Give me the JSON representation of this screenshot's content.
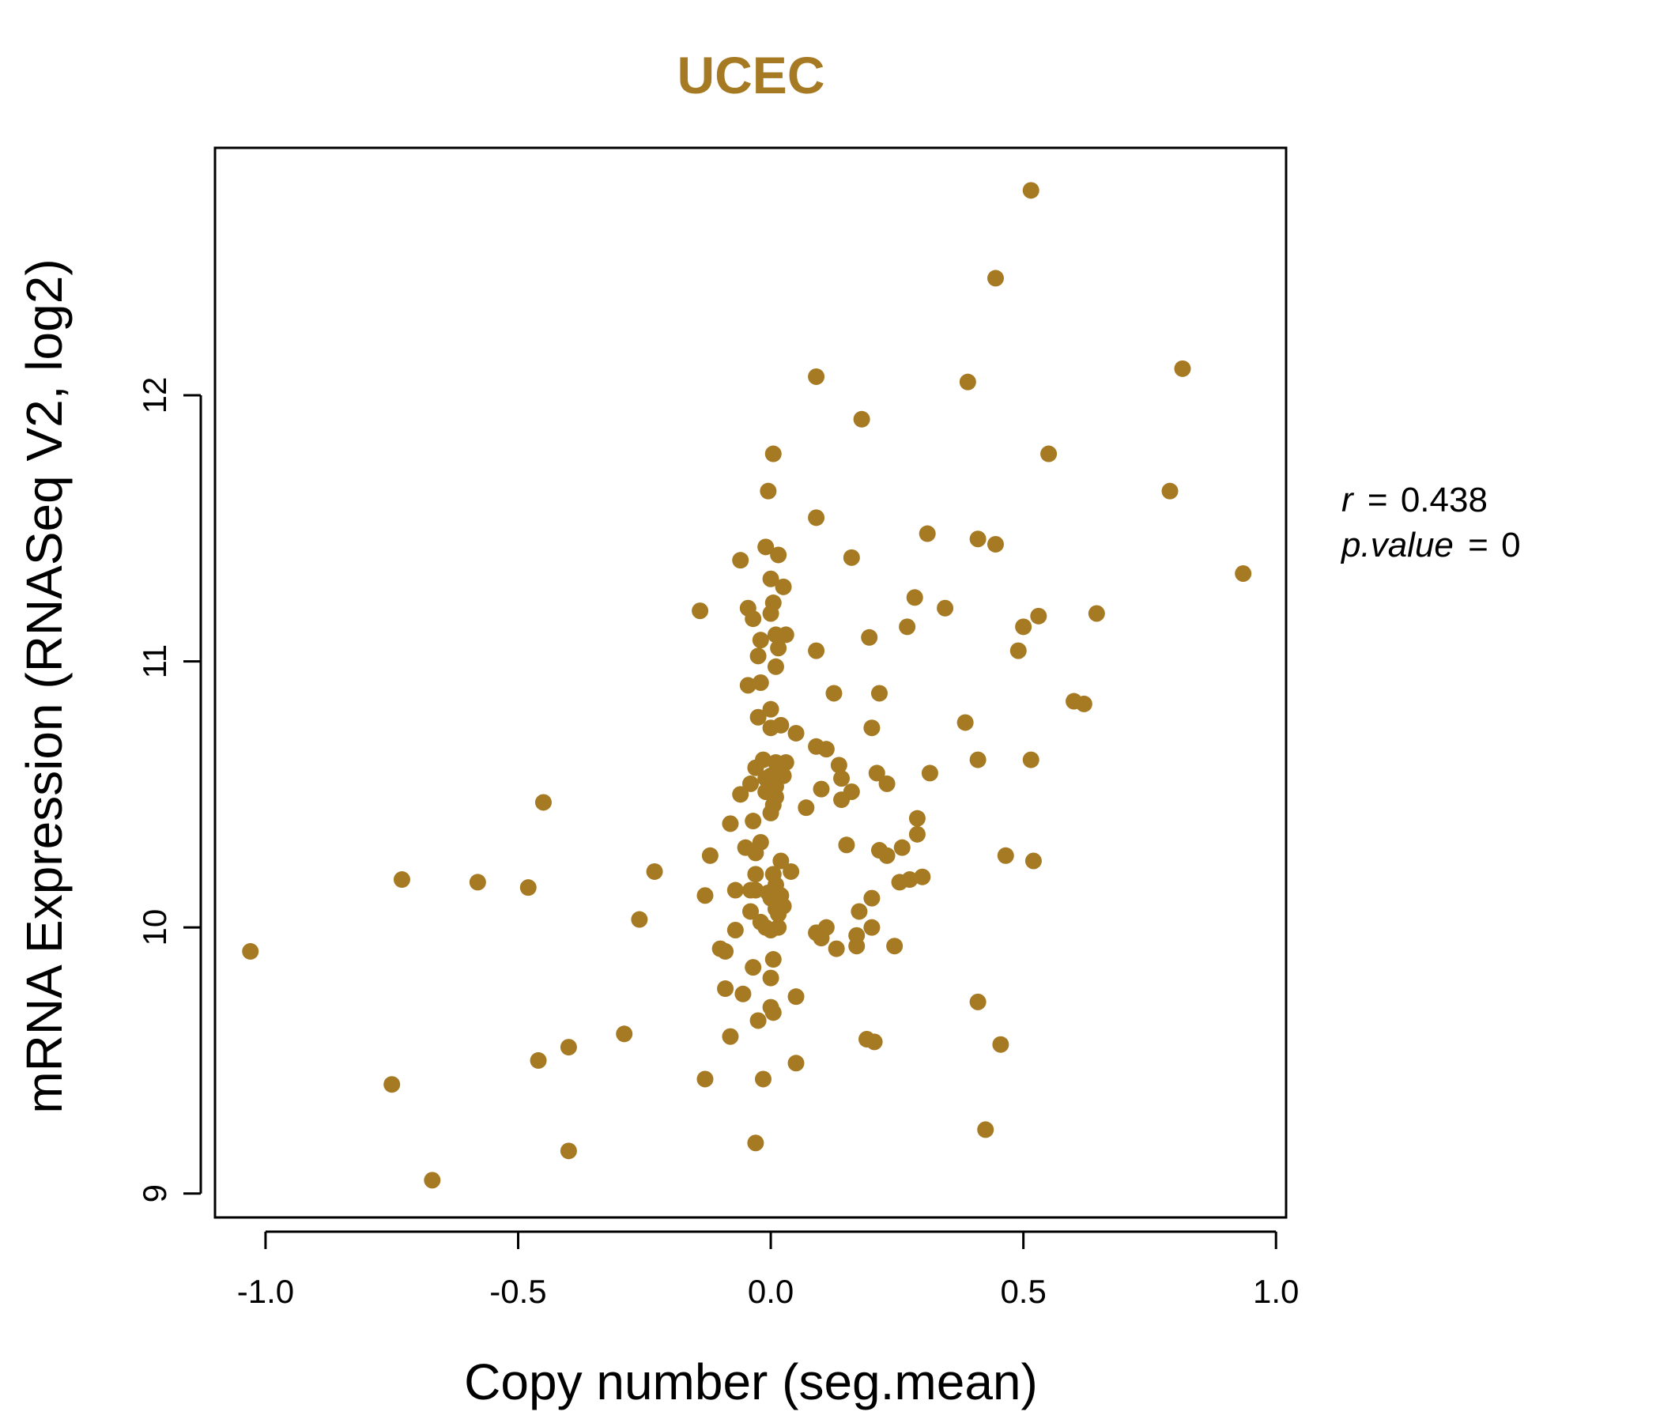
{
  "chart_data": {
    "type": "scatter",
    "title": "UCEC",
    "xlabel": "Copy number (seg.mean)",
    "ylabel": "mRNA Expression (RNASeq V2, log2)",
    "xlim": [
      -1.1,
      1.02
    ],
    "ylim": [
      8.91,
      12.93
    ],
    "xticks": [
      -1.0,
      -0.5,
      0.0,
      0.5,
      1.0
    ],
    "xtick_labels": [
      "-1.0",
      "-0.5",
      "0.0",
      "0.5",
      "1.0"
    ],
    "yticks": [
      9,
      10,
      11,
      12
    ],
    "ytick_labels": [
      "9",
      "10",
      "11",
      "12"
    ],
    "grid": false,
    "legend": "none",
    "point_color": "#A67A22",
    "annotations": {
      "r_label": "r",
      "r_value": "0.438",
      "p_label": "p.value",
      "p_value": "0",
      "equals": "="
    },
    "points": [
      [
        -1.03,
        9.91
      ],
      [
        -0.75,
        9.41
      ],
      [
        -0.73,
        10.18
      ],
      [
        -0.67,
        9.05
      ],
      [
        -0.58,
        10.17
      ],
      [
        -0.48,
        10.15
      ],
      [
        -0.46,
        9.5
      ],
      [
        -0.45,
        10.47
      ],
      [
        -0.4,
        9.55
      ],
      [
        -0.4,
        9.16
      ],
      [
        -0.29,
        9.6
      ],
      [
        -0.26,
        10.03
      ],
      [
        -0.23,
        10.21
      ],
      [
        -0.14,
        11.19
      ],
      [
        -0.13,
        10.12
      ],
      [
        -0.13,
        9.43
      ],
      [
        -0.12,
        10.27
      ],
      [
        -0.1,
        9.92
      ],
      [
        -0.09,
        9.77
      ],
      [
        -0.09,
        9.91
      ],
      [
        -0.08,
        9.59
      ],
      [
        -0.08,
        10.39
      ],
      [
        -0.07,
        10.14
      ],
      [
        -0.07,
        9.99
      ],
      [
        -0.06,
        11.38
      ],
      [
        -0.06,
        10.5
      ],
      [
        -0.055,
        9.75
      ],
      [
        -0.05,
        10.3
      ],
      [
        -0.045,
        11.2
      ],
      [
        -0.045,
        10.91
      ],
      [
        -0.04,
        10.54
      ],
      [
        -0.04,
        10.14
      ],
      [
        -0.04,
        10.06
      ],
      [
        -0.035,
        11.16
      ],
      [
        -0.035,
        10.4
      ],
      [
        -0.035,
        9.85
      ],
      [
        -0.03,
        10.6
      ],
      [
        -0.03,
        10.28
      ],
      [
        -0.03,
        10.2
      ],
      [
        -0.03,
        10.14
      ],
      [
        -0.03,
        9.19
      ],
      [
        -0.025,
        11.02
      ],
      [
        -0.025,
        10.79
      ],
      [
        -0.025,
        9.65
      ],
      [
        -0.02,
        11.08
      ],
      [
        -0.02,
        10.92
      ],
      [
        -0.02,
        10.32
      ],
      [
        -0.02,
        10.02
      ],
      [
        -0.015,
        10.63
      ],
      [
        -0.015,
        9.43
      ],
      [
        -0.01,
        11.43
      ],
      [
        -0.01,
        10.56
      ],
      [
        -0.01,
        10.51
      ],
      [
        -0.01,
        10.0
      ],
      [
        -0.005,
        11.64
      ],
      [
        -0.005,
        10.13
      ],
      [
        0.0,
        11.31
      ],
      [
        0.0,
        11.18
      ],
      [
        0.0,
        10.82
      ],
      [
        0.0,
        10.75
      ],
      [
        0.0,
        10.57
      ],
      [
        0.0,
        10.43
      ],
      [
        0.0,
        10.11
      ],
      [
        0.0,
        9.99
      ],
      [
        0.0,
        9.81
      ],
      [
        0.0,
        9.7
      ],
      [
        0.005,
        11.78
      ],
      [
        0.005,
        11.22
      ],
      [
        0.005,
        10.2
      ],
      [
        0.005,
        10.46
      ],
      [
        0.005,
        9.88
      ],
      [
        0.005,
        9.68
      ],
      [
        0.01,
        11.1
      ],
      [
        0.01,
        10.98
      ],
      [
        0.01,
        10.62
      ],
      [
        0.01,
        10.53
      ],
      [
        0.01,
        10.49
      ],
      [
        0.01,
        10.16
      ],
      [
        0.01,
        10.07
      ],
      [
        0.015,
        11.4
      ],
      [
        0.015,
        11.05
      ],
      [
        0.015,
        10.58
      ],
      [
        0.015,
        10.05
      ],
      [
        0.015,
        10.0
      ],
      [
        0.02,
        10.76
      ],
      [
        0.02,
        10.25
      ],
      [
        0.02,
        10.12
      ],
      [
        0.025,
        11.28
      ],
      [
        0.025,
        10.57
      ],
      [
        0.025,
        10.08
      ],
      [
        0.03,
        11.1
      ],
      [
        0.03,
        10.62
      ],
      [
        0.04,
        10.21
      ],
      [
        0.05,
        10.73
      ],
      [
        0.05,
        9.74
      ],
      [
        0.05,
        9.49
      ],
      [
        0.07,
        10.45
      ],
      [
        0.09,
        12.07
      ],
      [
        0.09,
        11.54
      ],
      [
        0.09,
        11.04
      ],
      [
        0.09,
        10.68
      ],
      [
        0.09,
        9.98
      ],
      [
        0.1,
        10.52
      ],
      [
        0.1,
        9.96
      ],
      [
        0.11,
        10.67
      ],
      [
        0.11,
        10.0
      ],
      [
        0.125,
        10.88
      ],
      [
        0.13,
        9.92
      ],
      [
        0.135,
        10.61
      ],
      [
        0.14,
        10.56
      ],
      [
        0.14,
        10.48
      ],
      [
        0.15,
        10.31
      ],
      [
        0.16,
        11.39
      ],
      [
        0.16,
        10.51
      ],
      [
        0.17,
        9.97
      ],
      [
        0.17,
        9.93
      ],
      [
        0.175,
        10.06
      ],
      [
        0.18,
        11.91
      ],
      [
        0.19,
        9.58
      ],
      [
        0.195,
        11.09
      ],
      [
        0.2,
        10.75
      ],
      [
        0.2,
        10.11
      ],
      [
        0.2,
        10.0
      ],
      [
        0.205,
        9.57
      ],
      [
        0.21,
        10.58
      ],
      [
        0.215,
        10.88
      ],
      [
        0.215,
        10.29
      ],
      [
        0.23,
        10.54
      ],
      [
        0.23,
        10.27
      ],
      [
        0.245,
        9.93
      ],
      [
        0.255,
        10.17
      ],
      [
        0.26,
        10.3
      ],
      [
        0.27,
        11.13
      ],
      [
        0.275,
        10.18
      ],
      [
        0.285,
        11.24
      ],
      [
        0.29,
        10.41
      ],
      [
        0.29,
        10.35
      ],
      [
        0.3,
        10.19
      ],
      [
        0.31,
        11.48
      ],
      [
        0.315,
        10.58
      ],
      [
        0.345,
        11.2
      ],
      [
        0.385,
        10.77
      ],
      [
        0.39,
        12.05
      ],
      [
        0.41,
        11.46
      ],
      [
        0.41,
        10.63
      ],
      [
        0.41,
        9.72
      ],
      [
        0.425,
        9.24
      ],
      [
        0.445,
        12.44
      ],
      [
        0.445,
        11.44
      ],
      [
        0.455,
        9.56
      ],
      [
        0.465,
        10.27
      ],
      [
        0.49,
        11.04
      ],
      [
        0.5,
        11.13
      ],
      [
        0.515,
        12.77
      ],
      [
        0.515,
        10.63
      ],
      [
        0.52,
        10.25
      ],
      [
        0.53,
        11.17
      ],
      [
        0.55,
        11.78
      ],
      [
        0.6,
        10.85
      ],
      [
        0.62,
        10.84
      ],
      [
        0.645,
        11.18
      ],
      [
        0.79,
        11.64
      ],
      [
        0.815,
        12.1
      ],
      [
        0.935,
        11.33
      ]
    ]
  }
}
